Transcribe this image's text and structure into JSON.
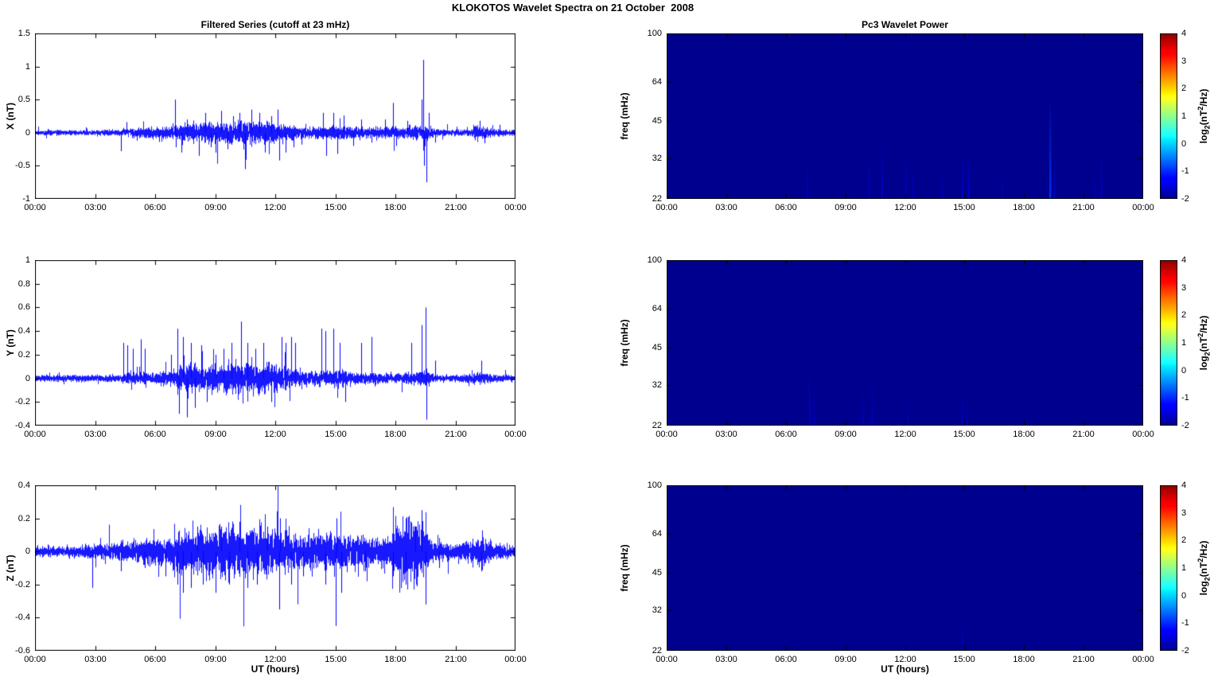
{
  "figure": {
    "title": "KLOKOTOS Wavelet Spectra on 21 October  2008",
    "background_color": "#ffffff",
    "series_color": "#0000ff"
  },
  "time_axis": {
    "label": "UT (hours)",
    "ticks": [
      0,
      3,
      6,
      9,
      12,
      15,
      18,
      21,
      24
    ],
    "tick_labels": [
      "00:00",
      "03:00",
      "06:00",
      "09:00",
      "12:00",
      "15:00",
      "18:00",
      "21:00",
      "00:00"
    ]
  },
  "colorbar": {
    "range": [
      -2,
      4
    ],
    "ticks": [
      4,
      3,
      2,
      1,
      0,
      -1,
      -2
    ],
    "tick_labels": [
      "4",
      "3",
      "2",
      "1",
      "0",
      "-1",
      "-2"
    ],
    "label": "log2(nT^2/Hz)",
    "label_parts": [
      "log",
      "_2",
      "(nT",
      "^2",
      "/Hz)"
    ],
    "colormap": "jet"
  },
  "chart_data": [
    {
      "type": "line",
      "panel": "X filtered series",
      "title": "Filtered Series (cutoff at 23 mHz)",
      "ylabel": "X (nT)",
      "xlim": [
        0,
        24
      ],
      "ylim": [
        -1,
        1.5
      ],
      "yticks": [
        1.5,
        1,
        0.5,
        0,
        -0.5,
        -1
      ],
      "ytick_labels": [
        "1.5",
        "1",
        "0.5",
        "0",
        "-0.5",
        "-1"
      ],
      "line_color": "#0000ff",
      "noise_envelope": [
        [
          0,
          0.025
        ],
        [
          3,
          0.025
        ],
        [
          4,
          0.03
        ],
        [
          5,
          0.05
        ],
        [
          6,
          0.05
        ],
        [
          7,
          0.07
        ],
        [
          7.5,
          0.09
        ],
        [
          8,
          0.09
        ],
        [
          9,
          0.1
        ],
        [
          10,
          0.11
        ],
        [
          11,
          0.11
        ],
        [
          12,
          0.1
        ],
        [
          12.5,
          0.09
        ],
        [
          13,
          0.06
        ],
        [
          14,
          0.06
        ],
        [
          15,
          0.07
        ],
        [
          16,
          0.06
        ],
        [
          17,
          0.05
        ],
        [
          18,
          0.06
        ],
        [
          18.5,
          0.05
        ],
        [
          19,
          0.07
        ],
        [
          19.6,
          0.08
        ],
        [
          20,
          0.035
        ],
        [
          21,
          0.03
        ],
        [
          21.8,
          0.03
        ],
        [
          22,
          0.07
        ],
        [
          22.5,
          0.06
        ],
        [
          23,
          0.035
        ],
        [
          24,
          0.03
        ]
      ],
      "spikes": [
        [
          4.3,
          -0.28
        ],
        [
          4.55,
          0.16
        ],
        [
          5.1,
          -0.12
        ],
        [
          6.2,
          -0.14
        ],
        [
          7.0,
          0.5
        ],
        [
          7.05,
          -0.22
        ],
        [
          7.3,
          -0.3
        ],
        [
          7.6,
          0.2
        ],
        [
          8.2,
          -0.35
        ],
        [
          8.5,
          0.3
        ],
        [
          8.8,
          -0.22
        ],
        [
          9.0,
          -0.3
        ],
        [
          9.3,
          0.33
        ],
        [
          9.6,
          -0.25
        ],
        [
          9.9,
          0.25
        ],
        [
          10.2,
          0.3
        ],
        [
          10.5,
          -0.55
        ],
        [
          10.8,
          0.35
        ],
        [
          11.2,
          0.3
        ],
        [
          11.5,
          -0.3
        ],
        [
          11.8,
          0.25
        ],
        [
          12.1,
          0.35
        ],
        [
          12.2,
          -0.42
        ],
        [
          12.5,
          -0.3
        ],
        [
          12.9,
          -0.22
        ],
        [
          13.3,
          -0.18
        ],
        [
          14.4,
          0.3
        ],
        [
          14.55,
          -0.35
        ],
        [
          14.9,
          0.3
        ],
        [
          15.1,
          -0.32
        ],
        [
          15.4,
          0.26
        ],
        [
          15.9,
          -0.2
        ],
        [
          16.3,
          0.2
        ],
        [
          16.8,
          -0.15
        ],
        [
          17.5,
          0.2
        ],
        [
          17.9,
          0.45
        ],
        [
          18.05,
          -0.2
        ],
        [
          18.6,
          0.18
        ],
        [
          19.3,
          0.5
        ],
        [
          19.38,
          1.1
        ],
        [
          19.45,
          -0.5
        ],
        [
          19.55,
          -0.75
        ],
        [
          19.65,
          0.3
        ],
        [
          20.0,
          -0.15
        ],
        [
          22.2,
          0.18
        ],
        [
          22.45,
          -0.16
        ],
        [
          23.2,
          0.12
        ]
      ]
    },
    {
      "type": "heatmap",
      "panel": "X wavelet power",
      "title": "Pc3 Wavelet Power",
      "ylabel": "freq (mHz)",
      "xlim": [
        0,
        24
      ],
      "ylim": [
        22,
        100
      ],
      "yscale": "log",
      "yticks": [
        100,
        64,
        45,
        32,
        22
      ],
      "ytick_labels": [
        "100",
        "64",
        "45",
        "32",
        "22"
      ],
      "background_value": -2,
      "streaks": [
        {
          "t": 7.1,
          "value": -1.55,
          "fmax": 31
        },
        {
          "t": 10.2,
          "value": -1.5,
          "fmax": 33
        },
        {
          "t": 10.85,
          "value": -1.45,
          "fmax": 37
        },
        {
          "t": 12.05,
          "value": -1.5,
          "fmax": 34
        },
        {
          "t": 12.4,
          "value": -1.6,
          "fmax": 30
        },
        {
          "t": 13.9,
          "value": -1.7,
          "fmax": 27
        },
        {
          "t": 14.9,
          "value": -1.5,
          "fmax": 33
        },
        {
          "t": 15.2,
          "value": -1.45,
          "fmax": 35
        },
        {
          "t": 16.9,
          "value": -1.7,
          "fmax": 27
        },
        {
          "t": 19.32,
          "value": -0.9,
          "fmax": 56,
          "w": 2
        },
        {
          "t": 19.55,
          "value": -1.5,
          "fmax": 31
        },
        {
          "t": 21.55,
          "value": -1.65,
          "fmax": 29
        },
        {
          "t": 21.9,
          "value": -1.45,
          "fmax": 34
        }
      ]
    },
    {
      "type": "line",
      "panel": "Y filtered series",
      "ylabel": "Y (nT)",
      "xlim": [
        0,
        24
      ],
      "ylim": [
        -0.4,
        1
      ],
      "yticks": [
        1,
        0.8,
        0.6,
        0.4,
        0.2,
        0,
        -0.2,
        -0.4
      ],
      "ytick_labels": [
        "1",
        "0.8",
        "0.6",
        "0.4",
        "0.2",
        "0",
        "-0.2",
        "-0.4"
      ],
      "line_color": "#0000ff",
      "noise_envelope": [
        [
          0,
          0.018
        ],
        [
          3,
          0.018
        ],
        [
          4,
          0.02
        ],
        [
          4.5,
          0.03
        ],
        [
          5,
          0.03
        ],
        [
          6,
          0.03
        ],
        [
          7,
          0.05
        ],
        [
          7.5,
          0.07
        ],
        [
          8,
          0.07
        ],
        [
          8.5,
          0.06
        ],
        [
          9,
          0.07
        ],
        [
          9.5,
          0.08
        ],
        [
          10,
          0.09
        ],
        [
          10.5,
          0.09
        ],
        [
          11,
          0.08
        ],
        [
          11.5,
          0.08
        ],
        [
          12,
          0.07
        ],
        [
          12.5,
          0.07
        ],
        [
          13,
          0.05
        ],
        [
          13.5,
          0.04
        ],
        [
          14,
          0.04
        ],
        [
          15,
          0.05
        ],
        [
          15.5,
          0.05
        ],
        [
          16,
          0.035
        ],
        [
          17,
          0.03
        ],
        [
          18,
          0.025
        ],
        [
          18.5,
          0.03
        ],
        [
          19,
          0.035
        ],
        [
          19.6,
          0.04
        ],
        [
          20,
          0.02
        ],
        [
          21,
          0.018
        ],
        [
          22,
          0.03
        ],
        [
          22.5,
          0.03
        ],
        [
          23,
          0.02
        ],
        [
          24,
          0.018
        ]
      ],
      "spikes": [
        [
          4.4,
          0.3
        ],
        [
          4.6,
          0.28
        ],
        [
          4.9,
          0.25
        ],
        [
          5.3,
          0.33
        ],
        [
          5.5,
          0.25
        ],
        [
          6.8,
          0.2
        ],
        [
          7.1,
          0.42
        ],
        [
          7.2,
          -0.3
        ],
        [
          7.4,
          0.35
        ],
        [
          7.6,
          -0.33
        ],
        [
          7.8,
          0.3
        ],
        [
          8.0,
          -0.25
        ],
        [
          8.3,
          0.28
        ],
        [
          8.6,
          -0.2
        ],
        [
          9.0,
          0.2
        ],
        [
          9.4,
          0.25
        ],
        [
          9.8,
          0.3
        ],
        [
          10.3,
          0.48
        ],
        [
          10.6,
          0.3
        ],
        [
          11.0,
          0.25
        ],
        [
          11.4,
          0.3
        ],
        [
          11.8,
          -0.2
        ],
        [
          12.3,
          0.35
        ],
        [
          12.5,
          0.3
        ],
        [
          12.8,
          0.35
        ],
        [
          13.0,
          0.3
        ],
        [
          14.3,
          0.42
        ],
        [
          14.5,
          0.4
        ],
        [
          14.9,
          0.42
        ],
        [
          15.2,
          0.3
        ],
        [
          15.5,
          -0.2
        ],
        [
          16.3,
          0.3
        ],
        [
          16.8,
          0.35
        ],
        [
          18.8,
          0.3
        ],
        [
          19.3,
          0.45
        ],
        [
          19.5,
          0.6
        ],
        [
          19.55,
          -0.35
        ],
        [
          20.0,
          0.15
        ],
        [
          22.3,
          0.15
        ]
      ]
    },
    {
      "type": "heatmap",
      "panel": "Y wavelet power",
      "ylabel": "freq (mHz)",
      "xlim": [
        0,
        24
      ],
      "ylim": [
        22,
        100
      ],
      "yscale": "log",
      "yticks": [
        100,
        64,
        45,
        32,
        22
      ],
      "ytick_labels": [
        "100",
        "64",
        "45",
        "32",
        "22"
      ],
      "background_value": -2,
      "streaks": [
        {
          "t": 7.2,
          "value": -1.45,
          "fmax": 37
        },
        {
          "t": 7.45,
          "value": -1.6,
          "fmax": 31
        },
        {
          "t": 9.9,
          "value": -1.6,
          "fmax": 31
        },
        {
          "t": 10.35,
          "value": -1.55,
          "fmax": 33
        },
        {
          "t": 12.15,
          "value": -1.7,
          "fmax": 28
        },
        {
          "t": 14.9,
          "value": -1.55,
          "fmax": 31
        },
        {
          "t": 15.15,
          "value": -1.65,
          "fmax": 29
        }
      ]
    },
    {
      "type": "line",
      "panel": "Z filtered series",
      "ylabel": "Z (nT)",
      "xlim": [
        0,
        24
      ],
      "ylim": [
        -0.6,
        0.4
      ],
      "yticks": [
        0.4,
        0.2,
        0,
        -0.2,
        -0.4,
        -0.6
      ],
      "ytick_labels": [
        "0.4",
        "0.2",
        "0",
        "-0.2",
        "-0.4",
        "-0.6"
      ],
      "line_color": "#0000ff",
      "noise_envelope": [
        [
          0,
          0.02
        ],
        [
          2,
          0.02
        ],
        [
          3,
          0.03
        ],
        [
          4,
          0.035
        ],
        [
          5,
          0.04
        ],
        [
          6,
          0.05
        ],
        [
          7,
          0.07
        ],
        [
          7.5,
          0.09
        ],
        [
          8,
          0.09
        ],
        [
          9,
          0.1
        ],
        [
          9.5,
          0.1
        ],
        [
          10,
          0.1
        ],
        [
          10.5,
          0.1
        ],
        [
          11,
          0.09
        ],
        [
          11.5,
          0.09
        ],
        [
          12,
          0.09
        ],
        [
          12.5,
          0.08
        ],
        [
          13,
          0.07
        ],
        [
          13.5,
          0.06
        ],
        [
          14,
          0.07
        ],
        [
          15,
          0.08
        ],
        [
          15.5,
          0.07
        ],
        [
          16,
          0.06
        ],
        [
          16.5,
          0.06
        ],
        [
          17,
          0.05
        ],
        [
          17.8,
          0.06
        ],
        [
          18,
          0.1
        ],
        [
          18.3,
          0.12
        ],
        [
          18.6,
          0.13
        ],
        [
          19,
          0.13
        ],
        [
          19.5,
          0.12
        ],
        [
          19.8,
          0.05
        ],
        [
          20,
          0.035
        ],
        [
          21,
          0.03
        ],
        [
          22,
          0.05
        ],
        [
          22.3,
          0.06
        ],
        [
          23,
          0.03
        ],
        [
          24,
          0.025
        ]
      ],
      "spikes": [
        [
          2.85,
          -0.22
        ],
        [
          4.3,
          -0.12
        ],
        [
          5.5,
          -0.1
        ],
        [
          6.5,
          -0.15
        ],
        [
          7.1,
          -0.2
        ],
        [
          7.4,
          -0.25
        ],
        [
          7.8,
          -0.22
        ],
        [
          8.1,
          0.15
        ],
        [
          8.4,
          -0.2
        ],
        [
          9.0,
          -0.25
        ],
        [
          9.3,
          0.15
        ],
        [
          9.7,
          -0.2
        ],
        [
          10.2,
          0.18
        ],
        [
          10.6,
          -0.22
        ],
        [
          11.1,
          -0.2
        ],
        [
          11.6,
          0.15
        ],
        [
          12.2,
          -0.35
        ],
        [
          12.25,
          0.2
        ],
        [
          12.8,
          -0.2
        ],
        [
          13.4,
          -0.15
        ],
        [
          14.5,
          -0.2
        ],
        [
          15.0,
          -0.45
        ],
        [
          15.05,
          0.2
        ],
        [
          15.3,
          -0.25
        ],
        [
          16.5,
          -0.12
        ],
        [
          17.9,
          -0.15
        ],
        [
          18.5,
          -0.2
        ],
        [
          19.0,
          0.15
        ],
        [
          19.3,
          0.25
        ],
        [
          19.5,
          -0.32
        ],
        [
          20.2,
          -0.1
        ],
        [
          22.3,
          -0.12
        ]
      ]
    },
    {
      "type": "heatmap",
      "panel": "Z wavelet power",
      "ylabel": "freq (mHz)",
      "xlim": [
        0,
        24
      ],
      "ylim": [
        22,
        100
      ],
      "yscale": "log",
      "yticks": [
        100,
        64,
        45,
        32,
        22
      ],
      "ytick_labels": [
        "100",
        "64",
        "45",
        "32",
        "22"
      ],
      "background_value": -2,
      "streaks": [
        {
          "t": 14.9,
          "value": -1.7,
          "fmax": 30
        }
      ]
    }
  ]
}
